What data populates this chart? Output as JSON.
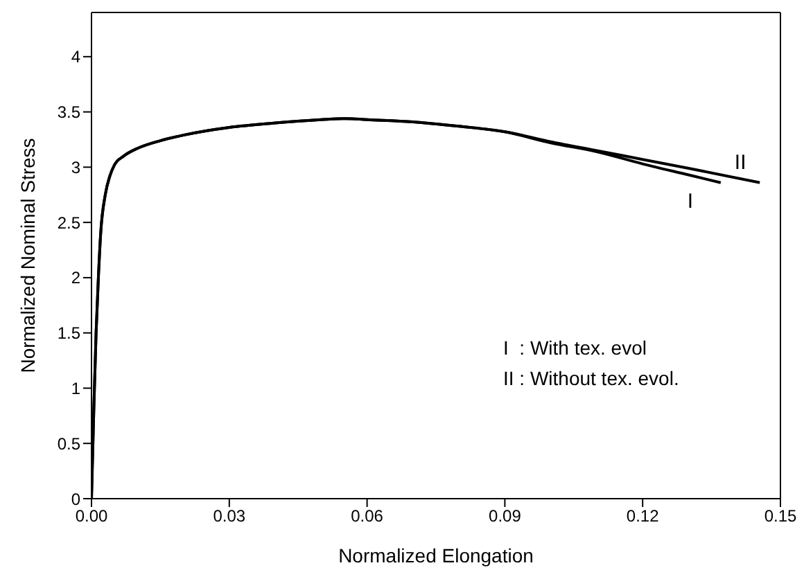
{
  "chart_data": {
    "type": "line",
    "xlabel": "Normalized Elongation",
    "ylabel": "Normalized Nominal Stress",
    "xlim": [
      0,
      0.15
    ],
    "ylim": [
      0,
      4.4
    ],
    "xticks": [
      {
        "value": 0,
        "label": "0.00"
      },
      {
        "value": 0.03,
        "label": "0.03"
      },
      {
        "value": 0.06,
        "label": "0.06"
      },
      {
        "value": 0.09,
        "label": "0.09"
      },
      {
        "value": 0.12,
        "label": "0.12"
      },
      {
        "value": 0.15,
        "label": "0.15"
      }
    ],
    "yticks": [
      0,
      0.5,
      1,
      1.5,
      2,
      2.5,
      3,
      3.5,
      4
    ],
    "grid": false,
    "legend": false,
    "marker": "none",
    "line_style": "solid",
    "annotations": [
      "I  : With tex. evol",
      "II : Without tex. evol."
    ],
    "series": [
      {
        "name": "I",
        "color": "#000000",
        "x": [
          0,
          0.0005,
          0.001,
          0.0015,
          0.002,
          0.003,
          0.004,
          0.005,
          0.007,
          0.01,
          0.015,
          0.02,
          0.03,
          0.04,
          0.05,
          0.055,
          0.06,
          0.07,
          0.08,
          0.09,
          0.1,
          0.11,
          0.12,
          0.13,
          0.137
        ],
        "values": [
          0,
          0.8,
          1.5,
          2.0,
          2.4,
          2.75,
          2.92,
          3.02,
          3.1,
          3.17,
          3.24,
          3.29,
          3.36,
          3.4,
          3.43,
          3.44,
          3.43,
          3.41,
          3.37,
          3.32,
          3.22,
          3.14,
          3.03,
          2.93,
          2.86
        ]
      },
      {
        "name": "II",
        "color": "#000000",
        "x": [
          0,
          0.0005,
          0.001,
          0.0015,
          0.002,
          0.003,
          0.004,
          0.005,
          0.007,
          0.01,
          0.015,
          0.02,
          0.03,
          0.04,
          0.05,
          0.055,
          0.06,
          0.07,
          0.08,
          0.09,
          0.1,
          0.11,
          0.12,
          0.13,
          0.1455
        ],
        "values": [
          0,
          0.8,
          1.5,
          2.0,
          2.4,
          2.75,
          2.92,
          3.02,
          3.1,
          3.17,
          3.24,
          3.29,
          3.36,
          3.4,
          3.43,
          3.44,
          3.43,
          3.41,
          3.37,
          3.32,
          3.23,
          3.15,
          3.07,
          2.99,
          2.86
        ]
      }
    ]
  }
}
